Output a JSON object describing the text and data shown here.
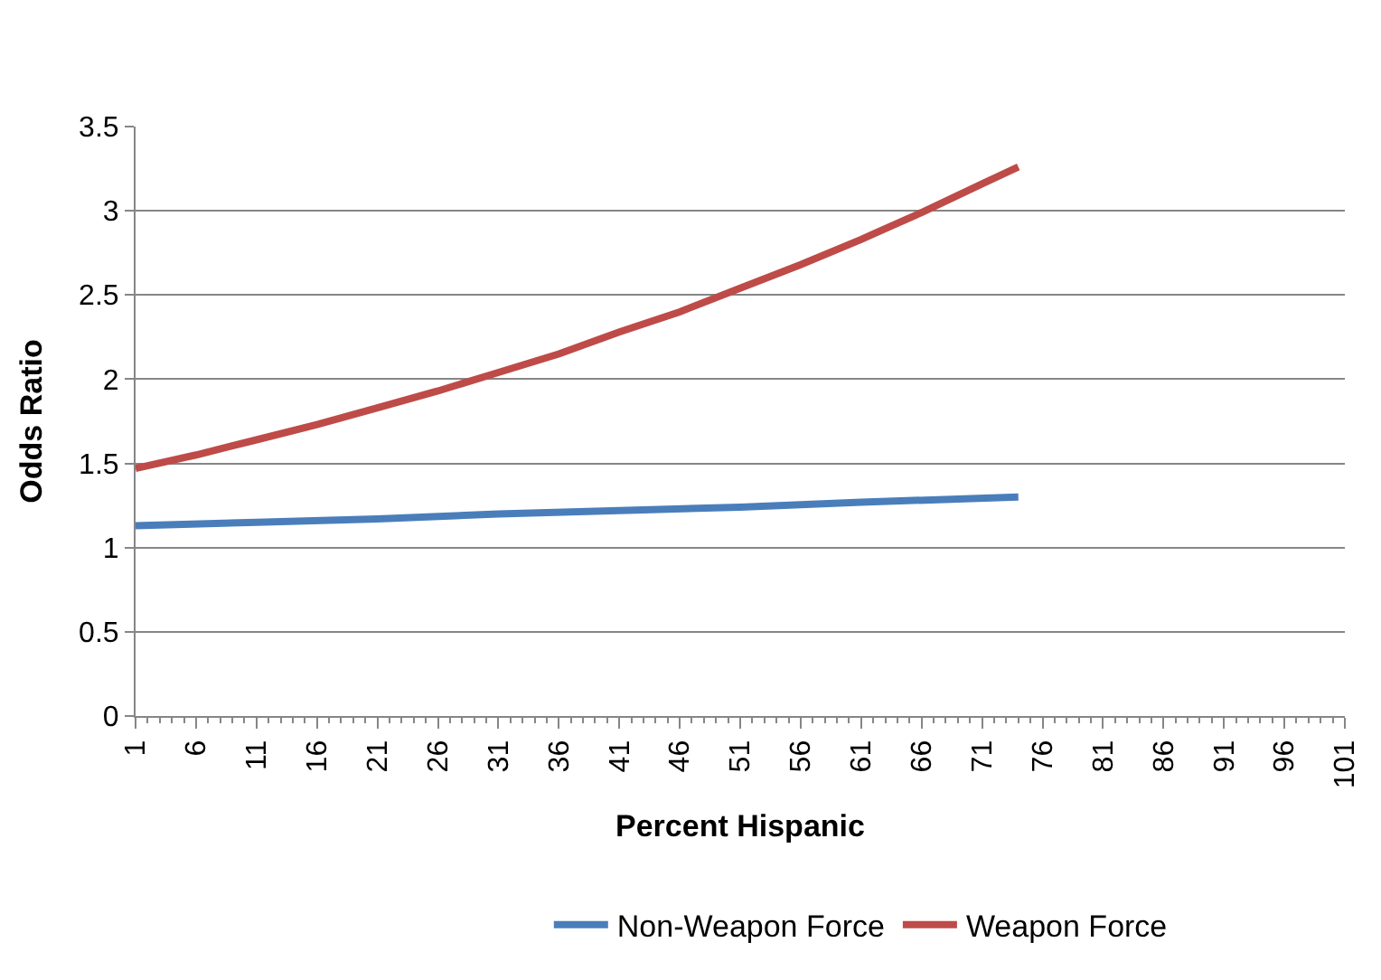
{
  "chart_data": {
    "type": "line",
    "xlabel": "Percent Hispanic",
    "ylabel": "Odds Ratio",
    "x": [
      1,
      6,
      11,
      16,
      21,
      26,
      31,
      36,
      41,
      46,
      51,
      56,
      61,
      66,
      71,
      74
    ],
    "series": [
      {
        "name": "Non-Weapon Force",
        "color": "#4a7ebb",
        "x": [
          1,
          11,
          21,
          31,
          41,
          51,
          61,
          74
        ],
        "values": [
          1.13,
          1.15,
          1.17,
          1.2,
          1.22,
          1.24,
          1.27,
          1.3
        ]
      },
      {
        "name": "Weapon Force",
        "color": "#be4b48",
        "values": [
          1.47,
          1.55,
          1.64,
          1.73,
          1.83,
          1.93,
          2.04,
          2.15,
          2.28,
          2.4,
          2.54,
          2.68,
          2.83,
          2.99,
          3.16,
          3.26
        ]
      }
    ],
    "xlim": [
      1,
      101
    ],
    "xticks": [
      1,
      6,
      11,
      16,
      21,
      26,
      31,
      36,
      41,
      46,
      51,
      56,
      61,
      66,
      71,
      76,
      81,
      86,
      91,
      96,
      101
    ],
    "ylim": [
      0,
      3.5
    ],
    "yticks": [
      0,
      0.5,
      1,
      1.5,
      2,
      2.5,
      3,
      3.5
    ],
    "grid": "y",
    "legend": "bottom",
    "marker": "none",
    "line_style": "solid"
  }
}
